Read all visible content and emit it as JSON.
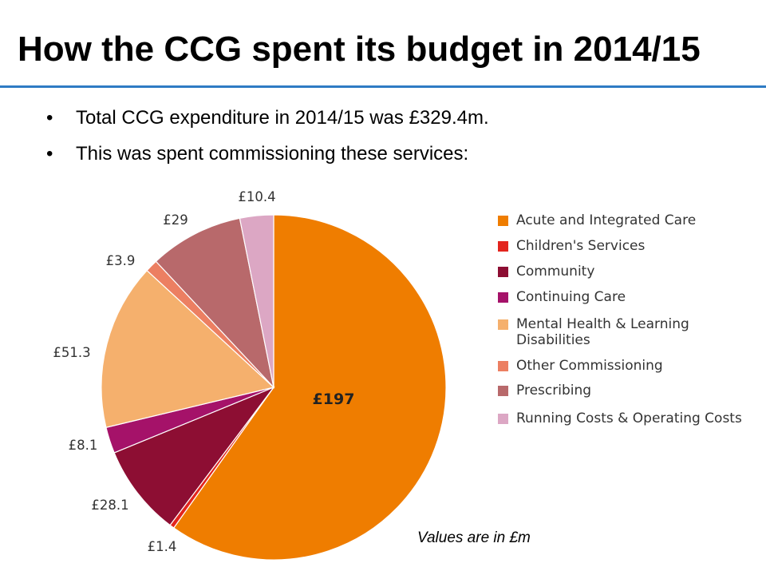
{
  "title": "How the CCG spent its budget in 2014/15",
  "bullets": [
    "Total CCG expenditure in 2014/15 was £329.4m.",
    "This was spent commissioning these services:"
  ],
  "bullet_symbol": "•",
  "note": "Values are in £m",
  "colors": {
    "rule": "#2e7bc4"
  },
  "chart_data": {
    "type": "pie",
    "title": "",
    "unit": "£m",
    "slices": [
      {
        "name": "Acute and Integrated Care",
        "value": 197,
        "label": "£197",
        "color": "#ef7d00"
      },
      {
        "name": "Children's Services",
        "value": 1.4,
        "label": "£1.4",
        "color": "#e3251e"
      },
      {
        "name": "Community",
        "value": 28.1,
        "label": "£28.1",
        "color": "#8d0e33"
      },
      {
        "name": "Continuing Care",
        "value": 8.1,
        "label": "£8.1",
        "color": "#a51269"
      },
      {
        "name": "Mental Health & Learning Disabilities",
        "value": 51.3,
        "label": "£51.3",
        "color": "#f5b06d"
      },
      {
        "name": "Other Commissioning",
        "value": 3.9,
        "label": "£3.9",
        "color": "#ec7f62"
      },
      {
        "name": "Prescribing",
        "value": 29,
        "label": "£29",
        "color": "#b8696b"
      },
      {
        "name": "Running Costs & Operating Costs",
        "value": 10.4,
        "label": "£10.4",
        "color": "#dca7c4"
      }
    ],
    "legend_position": "right"
  }
}
